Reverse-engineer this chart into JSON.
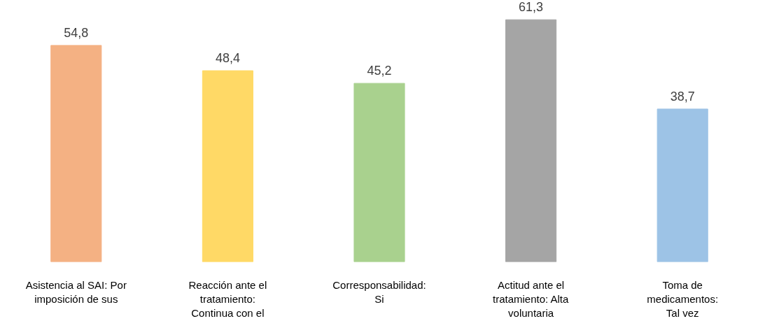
{
  "chart_data": {
    "type": "bar",
    "categories": [
      "Asistencia al SAI: Por\nimposición de sus",
      "Reacción ante el\ntratamiento:\nContinua con el",
      "Corresponsabilidad:\nSi",
      "Actitud ante el\ntratamiento: Alta\nvoluntaria",
      "Toma de\nmedicamentos:\nTal vez"
    ],
    "values": [
      54.8,
      48.4,
      45.2,
      61.3,
      38.7
    ],
    "colors": [
      "#f4b183",
      "#ffd966",
      "#a9d18e",
      "#a5a5a5",
      "#9dc3e6"
    ],
    "value_labels": [
      "54,8",
      "48,4",
      "45,2",
      "61,3",
      "38,7"
    ],
    "tick_labels": "x"
  }
}
